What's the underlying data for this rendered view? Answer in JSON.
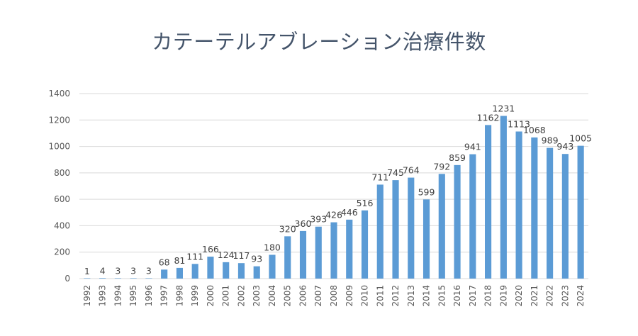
{
  "chart_data": {
    "type": "bar",
    "title": "カテーテルアブレーション治療件数",
    "xlabel": "",
    "ylabel": "",
    "categories": [
      "1992",
      "1993",
      "1994",
      "1995",
      "1996",
      "1997",
      "1998",
      "1999",
      "2000",
      "2001",
      "2002",
      "2003",
      "2004",
      "2005",
      "2006",
      "2007",
      "2008",
      "2009",
      "2010",
      "2011",
      "2012",
      "2013",
      "2014",
      "2015",
      "2016",
      "2017",
      "2018",
      "2019",
      "2020",
      "2021",
      "2022",
      "2023",
      "2024"
    ],
    "values": [
      1,
      4,
      3,
      3,
      3,
      68,
      81,
      111,
      166,
      124,
      117,
      93,
      180,
      320,
      360,
      393,
      426,
      446,
      516,
      711,
      745,
      764,
      599,
      792,
      859,
      941,
      1162,
      1231,
      1113,
      1068,
      989,
      943,
      1005
    ],
    "ylim": [
      0,
      1400
    ],
    "yticks": [
      0,
      200,
      400,
      600,
      800,
      1000,
      1200,
      1400
    ],
    "grid": true,
    "legend": "none",
    "bar_color": "#5b9bd5",
    "grid_color": "#d9d9d9"
  }
}
